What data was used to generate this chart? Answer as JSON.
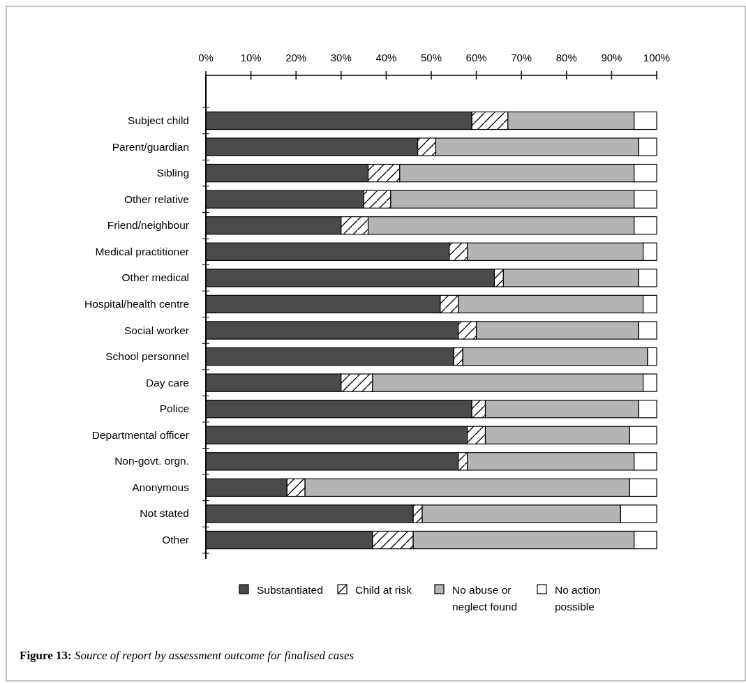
{
  "chart_data": {
    "type": "bar",
    "orientation": "horizontal",
    "stacked": true,
    "title": "Figure 13: Source of report by assessment outcome for finalised cases",
    "categories": [
      "Subject child",
      "Parent/guardian",
      "Sibling",
      "Other relative",
      "Friend/neighbour",
      "Medical practitioner",
      "Other medical",
      "Hospital/health centre",
      "Social worker",
      "School personnel",
      "Day care",
      "Police",
      "Departmental officer",
      "Non-govt. orgn.",
      "Anonymous",
      "Not stated",
      "Other"
    ],
    "series": [
      {
        "name": "Substantiated",
        "color": "#4a4a4a",
        "values": [
          59,
          47,
          36,
          35,
          30,
          54,
          64,
          52,
          56,
          55,
          30,
          59,
          58,
          56,
          18,
          46,
          37
        ]
      },
      {
        "name": "Child at risk",
        "color": "#ffffff",
        "values": [
          8,
          4,
          7,
          6,
          6,
          4,
          2,
          4,
          4,
          2,
          7,
          3,
          4,
          2,
          4,
          2,
          9
        ]
      },
      {
        "name": "No abuse or neglect found",
        "color": "#b4b4b4",
        "values": [
          28,
          45,
          52,
          54,
          59,
          39,
          30,
          41,
          36,
          41,
          60,
          34,
          32,
          37,
          72,
          44,
          49
        ]
      },
      {
        "name": "No action possible",
        "color": "#ffffff",
        "values": [
          5,
          4,
          5,
          5,
          5,
          3,
          4,
          3,
          4,
          2,
          3,
          4,
          6,
          5,
          6,
          8,
          5
        ]
      }
    ],
    "xlim": [
      0,
      100
    ],
    "xticks": [
      {
        "value": 0,
        "label": "0%"
      },
      {
        "value": 10,
        "label": "10%"
      },
      {
        "value": 20,
        "label": "20%"
      },
      {
        "value": 30,
        "label": "30%"
      },
      {
        "value": 40,
        "label": "40%"
      },
      {
        "value": 50,
        "label": "50%"
      },
      {
        "value": 60,
        "label": "60%"
      },
      {
        "value": 70,
        "label": "70%"
      },
      {
        "value": 80,
        "label": "80%"
      },
      {
        "value": 90,
        "label": "90%"
      },
      {
        "value": 100,
        "label": "100%"
      }
    ],
    "legend": "bottom"
  }
}
